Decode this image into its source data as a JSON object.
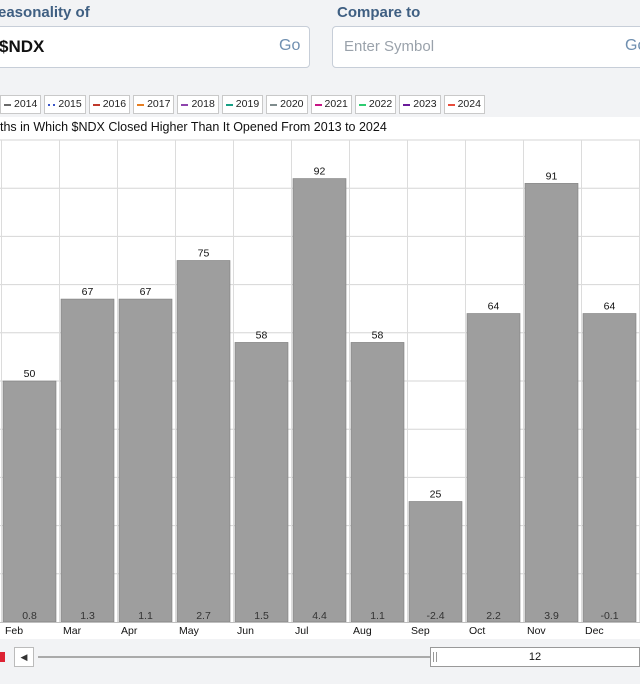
{
  "header": {
    "seasonality_label": "easonality of",
    "symbol_value": "$NDX",
    "go_label": "Go",
    "compare_label": "Compare to",
    "compare_placeholder": "Enter Symbol",
    "compare_go_label": "Go"
  },
  "legend": [
    {
      "label": "2014",
      "color": "#6a6a6a"
    },
    {
      "label": "2015",
      "color": "#3a55c8",
      "dotted": true
    },
    {
      "label": "2016",
      "color": "#c0392b"
    },
    {
      "label": "2017",
      "color": "#e67e22"
    },
    {
      "label": "2018",
      "color": "#8e44ad"
    },
    {
      "label": "2019",
      "color": "#16a085"
    },
    {
      "label": "2020",
      "color": "#7f8c8d"
    },
    {
      "label": "2021",
      "color": "#c71585"
    },
    {
      "label": "2022",
      "color": "#2ecc71"
    },
    {
      "label": "2023",
      "color": "#6a1b9a"
    },
    {
      "label": "2024",
      "color": "#e74c3c"
    }
  ],
  "chart_data": {
    "type": "bar",
    "title": "ths in Which $NDX Closed Higher Than It Opened From 2013 to 2024",
    "categories": [
      "Feb",
      "Mar",
      "Apr",
      "May",
      "Jun",
      "Jul",
      "Aug",
      "Sep",
      "Oct",
      "Nov",
      "Dec"
    ],
    "values": [
      50,
      67,
      67,
      75,
      58,
      92,
      58,
      25,
      64,
      91,
      64
    ],
    "bottom_labels": [
      "0.8",
      "1.3",
      "1.1",
      "2.7",
      "1.5",
      "4.4",
      "1.1",
      "-2.4",
      "2.2",
      "3.9",
      "-0.1"
    ],
    "ylim": [
      0,
      100
    ],
    "bar_color": "#9e9e9e",
    "grid": true
  },
  "scrollbar": {
    "value": "12"
  }
}
